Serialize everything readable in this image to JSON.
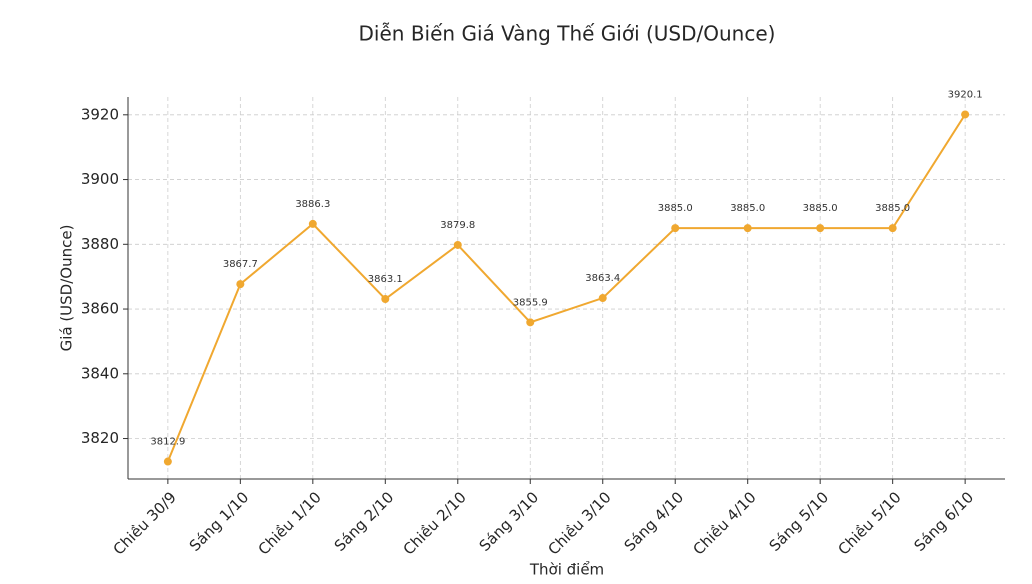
{
  "chart_data": {
    "type": "line",
    "title": "Diễn Biến Giá Vàng Thế Giới (USD/Ounce)",
    "x_label": "Thời điểm",
    "y_label": "Giá (USD/Ounce)",
    "categories": [
      "Chiều 30/9",
      "Sáng 1/10",
      "Chiều 1/10",
      "Sáng 2/10",
      "Chiều 2/10",
      "Sáng 3/10",
      "Chiều 3/10",
      "Sáng 4/10",
      "Chiều 4/10",
      "Sáng 5/10",
      "Chiều 5/10",
      "Sáng 6/10"
    ],
    "series": [
      {
        "color": "#f0a830",
        "values": [
          3812.9,
          3867.7,
          3886.3,
          3863.1,
          3879.8,
          3855.9,
          3863.4,
          3885,
          3885,
          3885,
          3885,
          3920.1
        ],
        "value_labels": [
          "3812.9",
          "3867.7",
          "3886.3",
          "3863.1",
          "3879.8",
          "3855.9",
          "3863.4",
          "3885.0",
          "3885.0",
          "3885.0",
          "3885.0",
          "3920.1"
        ]
      }
    ],
    "ylim": [
      3807.5,
      3925.5
    ],
    "yticks": [
      3820,
      3840,
      3860,
      3880,
      3900,
      3920
    ],
    "grid": true
  }
}
